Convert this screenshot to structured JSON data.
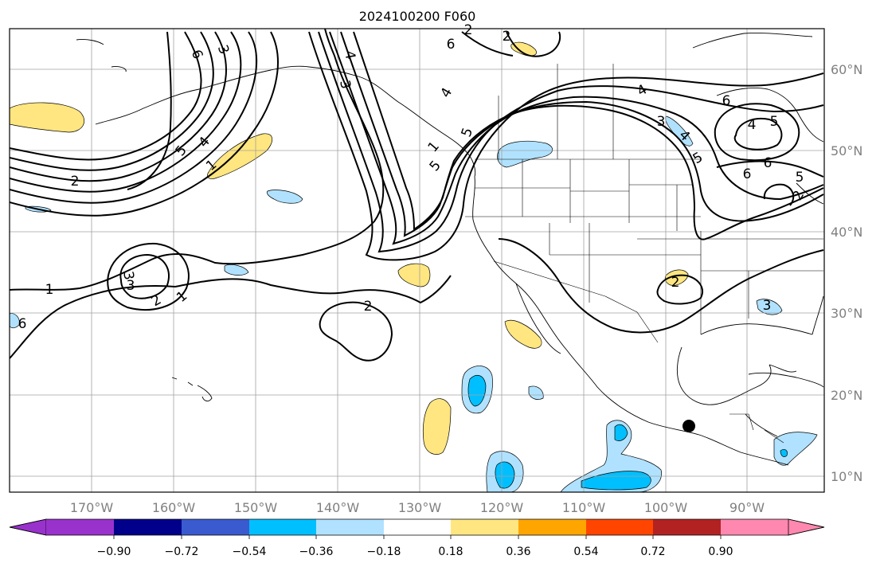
{
  "title": "2024100200 F060",
  "map": {
    "lon_ticks": [
      "170°W",
      "160°W",
      "150°W",
      "140°W",
      "130°W",
      "120°W",
      "110°W",
      "100°W",
      "90°W"
    ],
    "lat_ticks": [
      "60°N",
      "50°N",
      "40°N",
      "30°N",
      "20°N",
      "10°N"
    ],
    "marker": {
      "lon": -96.6,
      "lat": 16.0,
      "color": "#000000",
      "name": "storm-center-marker"
    },
    "grid": true
  },
  "contour_labels": [
    "6",
    "3",
    "4",
    "5",
    "1",
    "2",
    "2",
    "6",
    "4",
    "3",
    "5",
    "1",
    "2",
    "4",
    "3",
    "5",
    "6",
    "2",
    "6",
    "4",
    "5",
    "5",
    "6",
    "4",
    "5",
    "2",
    "3",
    "6",
    "3",
    "1",
    "1",
    "2",
    "2",
    "3",
    "4"
  ],
  "colorbar": {
    "ticks": [
      "−0.90",
      "−0.72",
      "−0.54",
      "−0.36",
      "−0.18",
      "0.18",
      "0.36",
      "0.54",
      "0.72",
      "0.90"
    ],
    "colors": [
      "#9932cc",
      "#00008b",
      "#3a5bd0",
      "#00bfff",
      "#b0e2ff",
      "#ffffff",
      "#ffe680",
      "#ffa500",
      "#ff4500",
      "#b22222",
      "#ff88b0"
    ],
    "extend": "both"
  }
}
